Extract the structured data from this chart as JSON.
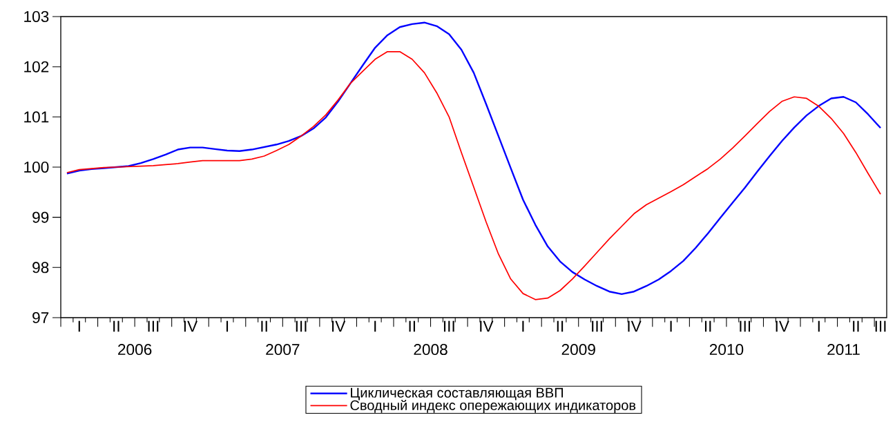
{
  "chart_data": {
    "type": "line",
    "categories": [
      null,
      "I",
      null,
      null,
      "II",
      null,
      null,
      "III",
      null,
      null,
      "IV",
      null,
      null,
      "I",
      null,
      null,
      "II",
      null,
      null,
      "III",
      null,
      null,
      "IV",
      null,
      null,
      "I",
      null,
      null,
      "II",
      null,
      null,
      "III",
      null,
      null,
      "IV",
      null,
      null,
      "I",
      null,
      null,
      "II",
      null,
      null,
      "III",
      null,
      null,
      "IV",
      null,
      null,
      "I",
      null,
      null,
      "II",
      null,
      null,
      "III",
      null,
      null,
      "IV",
      null,
      null,
      "I",
      null,
      null,
      "II",
      null,
      "III"
    ],
    "series": [
      {
        "name": "Циклическая составляющая ВВП",
        "color": "#0000ff",
        "values": [
          99.87,
          99.93,
          99.96,
          99.98,
          100.0,
          100.02,
          100.08,
          100.16,
          100.25,
          100.35,
          100.39,
          100.39,
          100.36,
          100.33,
          100.32,
          100.35,
          100.4,
          100.45,
          100.52,
          100.62,
          100.77,
          100.99,
          101.31,
          101.67,
          102.03,
          102.38,
          102.63,
          102.79,
          102.85,
          102.88,
          102.81,
          102.65,
          102.34,
          101.88,
          101.26,
          100.62,
          99.98,
          99.35,
          98.85,
          98.42,
          98.12,
          97.91,
          97.76,
          97.63,
          97.52,
          97.47,
          97.52,
          97.63,
          97.76,
          97.93,
          98.13,
          98.39,
          98.68,
          98.99,
          99.29,
          99.59,
          99.91,
          100.22,
          100.52,
          100.79,
          101.03,
          101.22,
          101.37,
          101.4,
          101.29,
          101.05,
          100.78
        ]
      },
      {
        "name": "Сводный индекс опережающих индикаторов",
        "color": "#ff0000",
        "values": [
          99.89,
          99.95,
          99.97,
          99.99,
          100.0,
          100.01,
          100.02,
          100.03,
          100.05,
          100.07,
          100.1,
          100.13,
          100.13,
          100.13,
          100.13,
          100.16,
          100.22,
          100.33,
          100.45,
          100.62,
          100.81,
          101.04,
          101.34,
          101.67,
          101.91,
          102.15,
          102.3,
          102.3,
          102.15,
          101.88,
          101.48,
          101.0,
          100.29,
          99.6,
          98.91,
          98.27,
          97.77,
          97.48,
          97.36,
          97.39,
          97.54,
          97.77,
          98.03,
          98.3,
          98.57,
          98.82,
          99.07,
          99.25,
          99.38,
          99.51,
          99.65,
          99.81,
          99.97,
          100.16,
          100.38,
          100.62,
          100.87,
          101.11,
          101.31,
          101.4,
          101.37,
          101.21,
          100.97,
          100.67,
          100.29,
          99.87,
          99.46
        ]
      }
    ],
    "annotations": [
      "2006",
      "2007",
      "2008",
      "2009",
      "2010",
      "2011"
    ],
    "ylim": [
      97,
      103
    ],
    "yticks": [
      97,
      98,
      99,
      100,
      101,
      102,
      103
    ],
    "legend": "bottom",
    "marker": "none",
    "line_style": "solid",
    "grid": false
  }
}
